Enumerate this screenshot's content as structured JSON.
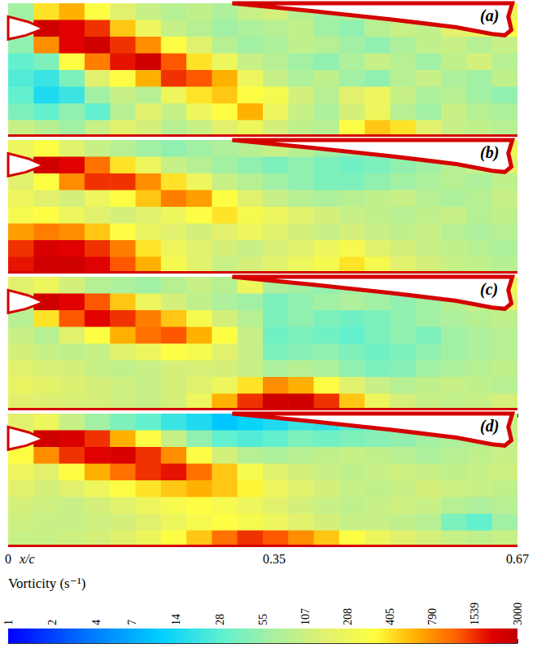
{
  "chart_data": {
    "type": "heatmap",
    "xlabel": "x/c",
    "xlim": [
      0,
      0.67
    ],
    "xticks": [
      0,
      0.35,
      0.67
    ],
    "tick_labels": "x",
    "colorbar": {
      "label": "Vorticity (s⁻¹)",
      "range": [
        1,
        3000
      ],
      "ticks": [
        1,
        2,
        4,
        7,
        14,
        28,
        55,
        107,
        208,
        405,
        790,
        1539,
        3000
      ],
      "log": true
    },
    "panels": [
      {
        "label": "(a)",
        "values": [
          [
            60,
            400,
            600,
            300,
            150,
            100,
            80,
            90,
            70,
            100,
            120,
            80,
            60,
            70,
            90,
            200,
            200,
            200,
            200,
            200
          ],
          [
            100,
            2500,
            2000,
            1500,
            500,
            200,
            100,
            80,
            60,
            70,
            80,
            90,
            60,
            50,
            80,
            100,
            90,
            150,
            200,
            300
          ],
          [
            50,
            800,
            2000,
            2500,
            1500,
            800,
            300,
            150,
            80,
            60,
            70,
            90,
            80,
            60,
            50,
            70,
            90,
            100,
            80,
            100
          ],
          [
            30,
            40,
            300,
            900,
            1800,
            2500,
            1200,
            400,
            200,
            100,
            80,
            60,
            50,
            70,
            100,
            80,
            60,
            90,
            120,
            80
          ],
          [
            25,
            20,
            40,
            150,
            300,
            600,
            1500,
            1200,
            600,
            200,
            100,
            70,
            90,
            60,
            50,
            80,
            100,
            70,
            60,
            90
          ],
          [
            30,
            15,
            20,
            60,
            100,
            80,
            200,
            400,
            500,
            300,
            250,
            120,
            80,
            150,
            200,
            100,
            70,
            80,
            60,
            50
          ],
          [
            40,
            30,
            50,
            30,
            80,
            150,
            100,
            200,
            300,
            600,
            200,
            100,
            70,
            120,
            200,
            80,
            60,
            100,
            80,
            70
          ],
          [
            100,
            80,
            60,
            100,
            150,
            120,
            80,
            100,
            150,
            200,
            120,
            90,
            80,
            300,
            500,
            400,
            150,
            100,
            90,
            80
          ]
        ]
      },
      {
        "label": "(b)",
        "values": [
          [
            200,
            300,
            150,
            100,
            80,
            60,
            50,
            60,
            70,
            80,
            100,
            80,
            60,
            50,
            60,
            80,
            100,
            120,
            150,
            200
          ],
          [
            100,
            2500,
            2000,
            1000,
            400,
            200,
            100,
            80,
            60,
            50,
            40,
            50,
            40,
            35,
            40,
            50,
            60,
            80,
            100,
            150
          ],
          [
            150,
            300,
            800,
            1500,
            1500,
            800,
            400,
            200,
            100,
            80,
            60,
            50,
            40,
            40,
            50,
            60,
            70,
            80,
            70,
            90
          ],
          [
            200,
            150,
            120,
            200,
            300,
            500,
            900,
            700,
            300,
            150,
            100,
            80,
            70,
            80,
            90,
            100,
            80,
            70,
            80,
            100
          ],
          [
            250,
            300,
            200,
            150,
            120,
            150,
            200,
            300,
            400,
            250,
            200,
            150,
            120,
            100,
            90,
            80,
            90,
            100,
            80,
            90
          ],
          [
            700,
            900,
            800,
            500,
            300,
            180,
            150,
            120,
            150,
            200,
            150,
            120,
            100,
            120,
            100,
            90,
            100,
            80,
            70,
            80
          ],
          [
            1500,
            2200,
            2000,
            1500,
            900,
            400,
            200,
            150,
            120,
            100,
            130,
            150,
            200,
            250,
            150,
            120,
            100,
            90,
            80,
            70
          ],
          [
            1800,
            2500,
            2500,
            2000,
            1200,
            600,
            250,
            150,
            100,
            120,
            150,
            200,
            250,
            400,
            250,
            150,
            120,
            100,
            90,
            80
          ]
        ]
      },
      {
        "label": "(c)",
        "values": [
          [
            150,
            200,
            120,
            80,
            70,
            60,
            80,
            100,
            80,
            200,
            70,
            60,
            50,
            60,
            70,
            80,
            90,
            100,
            150,
            200
          ],
          [
            100,
            2500,
            2000,
            1200,
            500,
            200,
            120,
            90,
            70,
            60,
            40,
            50,
            60,
            70,
            60,
            50,
            60,
            80,
            100,
            150
          ],
          [
            80,
            400,
            1200,
            2000,
            1500,
            900,
            500,
            250,
            120,
            80,
            40,
            50,
            40,
            35,
            40,
            50,
            60,
            70,
            80,
            90
          ],
          [
            100,
            80,
            150,
            300,
            600,
            1000,
            1200,
            600,
            300,
            100,
            35,
            40,
            35,
            30,
            40,
            50,
            40,
            60,
            70,
            80
          ],
          [
            120,
            100,
            90,
            100,
            150,
            200,
            300,
            250,
            150,
            100,
            40,
            45,
            50,
            40,
            35,
            40,
            50,
            60,
            70,
            80
          ],
          [
            150,
            130,
            120,
            100,
            90,
            100,
            120,
            130,
            120,
            100,
            70,
            80,
            70,
            50,
            40,
            45,
            60,
            70,
            80,
            90
          ],
          [
            180,
            160,
            140,
            120,
            110,
            100,
            120,
            150,
            200,
            400,
            800,
            600,
            300,
            150,
            100,
            80,
            90,
            100,
            90,
            80
          ],
          [
            150,
            140,
            130,
            120,
            110,
            100,
            120,
            200,
            600,
            1500,
            2500,
            2500,
            1500,
            500,
            200,
            120,
            100,
            90,
            100,
            120
          ]
        ]
      },
      {
        "label": "(d)",
        "values": [
          [
            150,
            200,
            100,
            60,
            40,
            30,
            20,
            15,
            10,
            12,
            15,
            20,
            18,
            25,
            30,
            40,
            50,
            60,
            80,
            100
          ],
          [
            200,
            2500,
            2200,
            1500,
            600,
            300,
            100,
            50,
            30,
            25,
            30,
            40,
            35,
            40,
            45,
            50,
            60,
            70,
            80,
            100
          ],
          [
            300,
            800,
            1500,
            2000,
            2200,
            1500,
            800,
            300,
            120,
            80,
            70,
            80,
            90,
            100,
            90,
            80,
            70,
            80,
            90,
            100
          ],
          [
            200,
            150,
            300,
            600,
            1000,
            1500,
            1800,
            1000,
            500,
            250,
            150,
            120,
            100,
            90,
            100,
            110,
            100,
            90,
            100,
            110
          ],
          [
            150,
            120,
            150,
            200,
            300,
            400,
            500,
            600,
            500,
            350,
            200,
            150,
            120,
            100,
            90,
            100,
            120,
            110,
            100,
            90
          ],
          [
            120,
            110,
            100,
            120,
            150,
            200,
            250,
            300,
            250,
            200,
            150,
            120,
            100,
            90,
            100,
            110,
            100,
            80,
            70,
            80
          ],
          [
            110,
            100,
            100,
            110,
            120,
            150,
            200,
            250,
            300,
            250,
            200,
            150,
            120,
            100,
            100,
            90,
            80,
            40,
            30,
            60
          ],
          [
            100,
            100,
            110,
            120,
            150,
            200,
            300,
            500,
            1000,
            1500,
            1200,
            800,
            500,
            300,
            200,
            150,
            120,
            100,
            90,
            100
          ]
        ]
      }
    ]
  }
}
